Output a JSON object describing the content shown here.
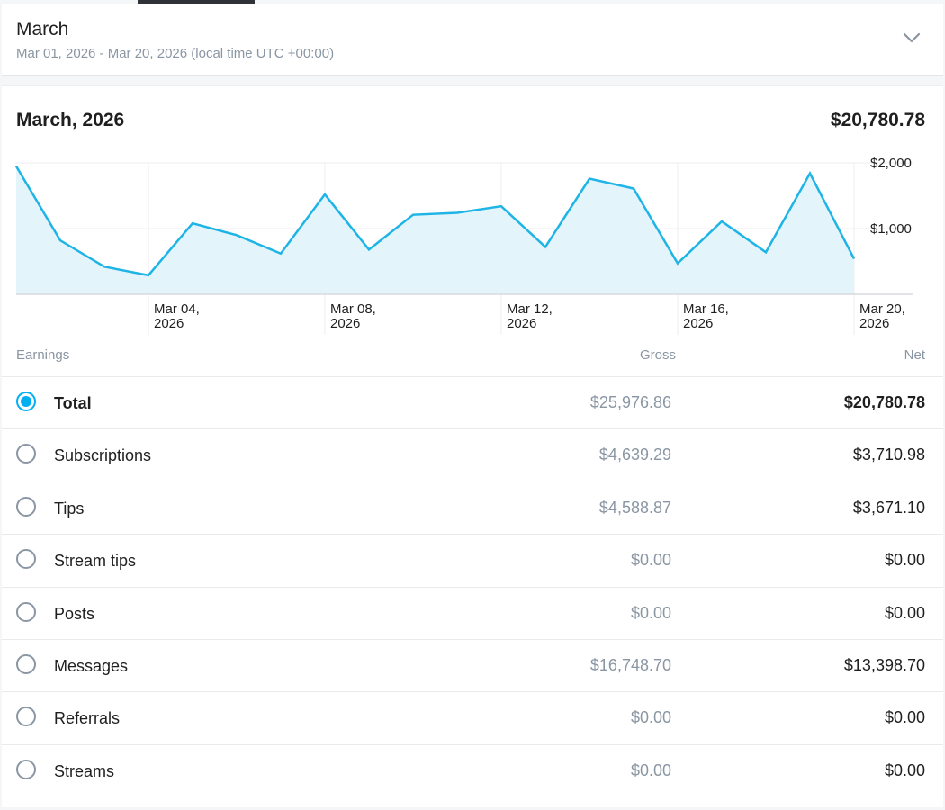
{
  "period": {
    "title": "March",
    "range": "Mar 01, 2026 - Mar 20, 2026 (local time UTC +00:00)"
  },
  "chart_header": {
    "title": "March, 2026",
    "total": "$20,780.78"
  },
  "chart_data": {
    "type": "area",
    "x": [
      "2026-03-01",
      "2026-03-02",
      "2026-03-03",
      "2026-03-04",
      "2026-03-05",
      "2026-03-06",
      "2026-03-07",
      "2026-03-08",
      "2026-03-09",
      "2026-03-10",
      "2026-03-11",
      "2026-03-12",
      "2026-03-13",
      "2026-03-14",
      "2026-03-15",
      "2026-03-16",
      "2026-03-17",
      "2026-03-18",
      "2026-03-19",
      "2026-03-20"
    ],
    "values": [
      1950,
      820,
      420,
      290,
      1080,
      900,
      620,
      1520,
      680,
      1210,
      1240,
      1340,
      720,
      1760,
      1610,
      470,
      1110,
      640,
      1840,
      540
    ],
    "x_tick_labels": [
      {
        "x": "2026-03-04",
        "line1": "Mar 04,",
        "line2": "2026"
      },
      {
        "x": "2026-03-08",
        "line1": "Mar 08,",
        "line2": "2026"
      },
      {
        "x": "2026-03-12",
        "line1": "Mar 12,",
        "line2": "2026"
      },
      {
        "x": "2026-03-16",
        "line1": "Mar 16,",
        "line2": "2026"
      },
      {
        "x": "2026-03-20",
        "line1": "Mar 20,",
        "line2": "2026"
      }
    ],
    "y_tick_labels": [
      {
        "value": 2000,
        "label": "$2,000"
      },
      {
        "value": 1000,
        "label": "$1,000"
      }
    ],
    "ylim": [
      0,
      2000
    ],
    "grid": true,
    "colors": {
      "line": "#1fb4e6",
      "fill": "#e3f4fb",
      "grid": "#eceef0",
      "axis": "#d7dade"
    }
  },
  "table": {
    "headers": {
      "earnings": "Earnings",
      "gross": "Gross",
      "net": "Net"
    },
    "rows": [
      {
        "label": "Total",
        "gross": "$25,976.86",
        "net": "$20,780.78",
        "selected": true
      },
      {
        "label": "Subscriptions",
        "gross": "$4,639.29",
        "net": "$3,710.98",
        "selected": false
      },
      {
        "label": "Tips",
        "gross": "$4,588.87",
        "net": "$3,671.10",
        "selected": false
      },
      {
        "label": "Stream tips",
        "gross": "$0.00",
        "net": "$0.00",
        "selected": false
      },
      {
        "label": "Posts",
        "gross": "$0.00",
        "net": "$0.00",
        "selected": false
      },
      {
        "label": "Messages",
        "gross": "$16,748.70",
        "net": "$13,398.70",
        "selected": false
      },
      {
        "label": "Referrals",
        "gross": "$0.00",
        "net": "$0.00",
        "selected": false
      },
      {
        "label": "Streams",
        "gross": "$0.00",
        "net": "$0.00",
        "selected": false
      }
    ]
  },
  "icons": {
    "chevron": "chevron-down-icon",
    "radio_checked": "radio-checked-icon",
    "radio_unchecked": "radio-unchecked-icon"
  }
}
